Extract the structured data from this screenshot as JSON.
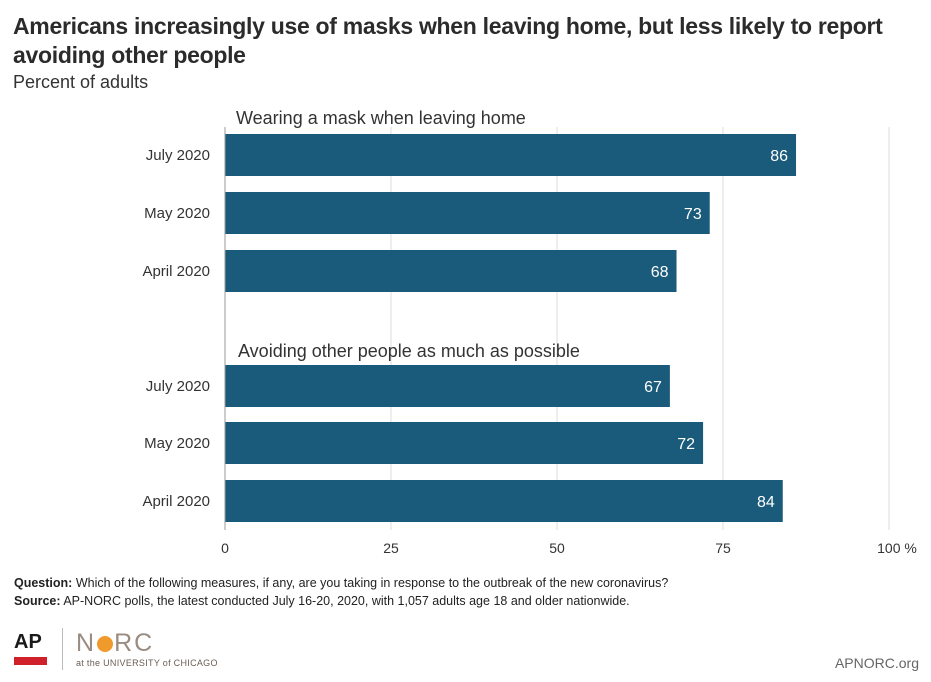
{
  "header": {
    "title": "Americans increasingly use of masks when leaving home, but less likely to report avoiding other people",
    "subtitle": "Percent of adults"
  },
  "chart_data": {
    "type": "bar",
    "orientation": "horizontal",
    "xlim": [
      0,
      100
    ],
    "x_ticks": [
      "0",
      "25",
      "50",
      "75",
      "100 %"
    ],
    "x_tick_values": [
      0,
      25,
      50,
      75,
      100
    ],
    "grid": true,
    "bar_color": "#1a5a7a",
    "groups": [
      {
        "label": "Wearing a mask when leaving home",
        "categories": [
          "July 2020",
          "May 2020",
          "April 2020"
        ],
        "values": [
          86,
          73,
          68
        ]
      },
      {
        "label": "Avoiding other people as much as possible",
        "categories": [
          "July 2020",
          "May 2020",
          "April 2020"
        ],
        "values": [
          67,
          72,
          84
        ]
      }
    ]
  },
  "footer": {
    "question_label": "Question:",
    "question_text": " Which of the following measures, if any, are you taking in response to the outbreak of the new coronavirus?",
    "source_label": "Source:",
    "source_text": " AP-NORC polls, the latest conducted July 16-20, 2020, with 1,057 adults age 18 and older nationwide.",
    "logo_ap": "AP",
    "logo_norc_n": "N",
    "logo_norc_rc": "RC",
    "logo_norc_sub": "at the UNIVERSITY of CHICAGO",
    "site": "APNORC.org"
  }
}
